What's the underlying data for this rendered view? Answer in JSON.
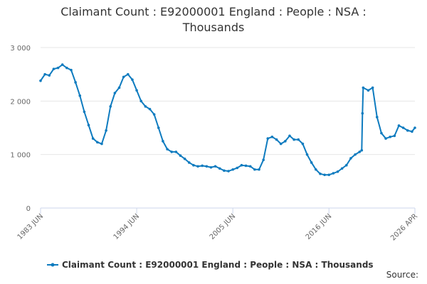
{
  "chart_data": {
    "type": "line",
    "title": "Claimant Count : E92000001 England : People : NSA : Thousands",
    "source_label": "Source:",
    "xlim": [
      "1983 JUN",
      "2026 APR"
    ],
    "xticks": [
      "1983 JUN",
      "1994 JUN",
      "2005 JUN",
      "2016 JUN",
      "2026 APR"
    ],
    "ylim": [
      0,
      3000
    ],
    "yticks": [
      {
        "value": 0,
        "label": "0"
      },
      {
        "value": 1000,
        "label": "1 000"
      },
      {
        "value": 2000,
        "label": "2 000"
      },
      {
        "value": 3000,
        "label": "3 000"
      }
    ],
    "grid": true,
    "legend": "bottom",
    "x": [
      "1983 JUN",
      "1983 DEC",
      "1984 JUN",
      "1984 DEC",
      "1985 JUN",
      "1985 DEC",
      "1986 JUN",
      "1986 DEC",
      "1987 JUN",
      "1987 DEC",
      "1988 JUN",
      "1988 DEC",
      "1989 JUN",
      "1989 DEC",
      "1990 JUN",
      "1990 DEC",
      "1991 JUN",
      "1991 DEC",
      "1992 JUN",
      "1992 DEC",
      "1993 JUN",
      "1993 DEC",
      "1994 JUN",
      "1994 DEC",
      "1995 JUN",
      "1995 DEC",
      "1996 JUN",
      "1996 DEC",
      "1997 JUN",
      "1997 DEC",
      "1998 JUN",
      "1998 DEC",
      "1999 JUN",
      "1999 DEC",
      "2000 JUN",
      "2000 DEC",
      "2001 JUN",
      "2001 DEC",
      "2002 JUN",
      "2002 DEC",
      "2003 JUN",
      "2003 DEC",
      "2004 JUN",
      "2004 DEC",
      "2005 JUN",
      "2005 DEC",
      "2006 JUN",
      "2006 DEC",
      "2007 JUN",
      "2007 DEC",
      "2008 JUN",
      "2008 DEC",
      "2009 JUN",
      "2009 DEC",
      "2010 JUN",
      "2010 DEC",
      "2011 JUN",
      "2011 DEC",
      "2012 JUN",
      "2012 DEC",
      "2013 JUN",
      "2013 DEC",
      "2014 JUN",
      "2014 DEC",
      "2015 JUN",
      "2015 DEC",
      "2016 JUN",
      "2016 DEC",
      "2017 JUN",
      "2017 DEC",
      "2018 JUN",
      "2018 DEC",
      "2019 JUN",
      "2019 DEC",
      "2020 MAR",
      "2020 APR",
      "2020 MAY",
      "2020 DEC",
      "2021 JUN",
      "2021 DEC",
      "2022 JUN",
      "2022 DEC",
      "2023 JUN",
      "2023 DEC",
      "2024 JUN",
      "2024 DEC",
      "2025 JUN",
      "2025 DEC",
      "2026 APR"
    ],
    "series": [
      {
        "name": "Claimant Count : E92000001 England : People : NSA : Thousands",
        "color": "#0e7bbf",
        "values": [
          2380,
          2500,
          2480,
          2600,
          2620,
          2680,
          2620,
          2580,
          2350,
          2100,
          1800,
          1550,
          1300,
          1230,
          1200,
          1450,
          1900,
          2150,
          2250,
          2450,
          2500,
          2400,
          2200,
          2000,
          1900,
          1850,
          1750,
          1500,
          1250,
          1100,
          1050,
          1050,
          980,
          920,
          850,
          800,
          780,
          790,
          780,
          760,
          780,
          740,
          700,
          690,
          720,
          750,
          800,
          790,
          780,
          720,
          720,
          900,
          1300,
          1330,
          1280,
          1200,
          1250,
          1350,
          1280,
          1280,
          1200,
          1000,
          850,
          720,
          640,
          620,
          620,
          650,
          680,
          740,
          800,
          930,
          1000,
          1050,
          1080,
          1770,
          2250,
          2200,
          2250,
          1700,
          1400,
          1300,
          1330,
          1350,
          1540,
          1500,
          1450,
          1430,
          1500
        ]
      }
    ]
  }
}
